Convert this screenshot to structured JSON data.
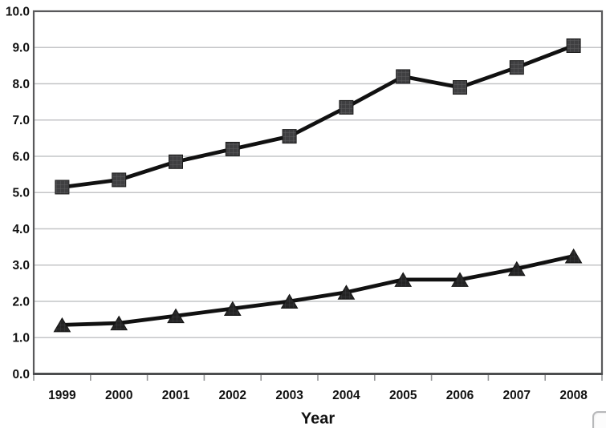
{
  "chart_data": {
    "type": "line",
    "title": "",
    "xlabel": "Year",
    "ylabel": "",
    "categories": [
      "1999",
      "2000",
      "2001",
      "2002",
      "2003",
      "2004",
      "2005",
      "2006",
      "2007",
      "2008"
    ],
    "series": [
      {
        "name": "upper-series-square-markers",
        "marker": "square",
        "values": [
          5.15,
          5.35,
          5.85,
          6.2,
          6.55,
          7.35,
          8.2,
          7.9,
          8.45,
          9.05
        ]
      },
      {
        "name": "lower-series-triangle-markers",
        "marker": "triangle",
        "values": [
          1.35,
          1.4,
          1.6,
          1.8,
          2.0,
          2.25,
          2.6,
          2.6,
          2.9,
          3.25
        ]
      }
    ],
    "ylim": [
      0,
      10
    ],
    "ytick_step": 1,
    "ytick_labels": [
      "0.0",
      "1.0",
      "2.0",
      "3.0",
      "4.0",
      "5.0",
      "6.0",
      "7.0",
      "8.0",
      "9.0",
      "10.0"
    ],
    "grid": true,
    "legend": "none",
    "colors": {
      "series_line": "#111111",
      "square_marker_fill": "#3f3f41",
      "square_marker_texture": "#5c5c5e",
      "square_marker_stroke": "#1b1b1b",
      "triangle_marker_fill": "#232323",
      "triangle_marker_texture": "#3e3e40",
      "triangle_marker_stroke": "#141414",
      "gridline": "#c4c5c7",
      "plot_border": "#59595b",
      "axis_line": "#4c4d4f",
      "tick": "#959698",
      "text": "#111111",
      "background": "#ffffff"
    }
  },
  "overlay": {
    "corner_widget": {
      "border_color": "#b7b8ba",
      "fill": "#fcfcfc"
    }
  }
}
